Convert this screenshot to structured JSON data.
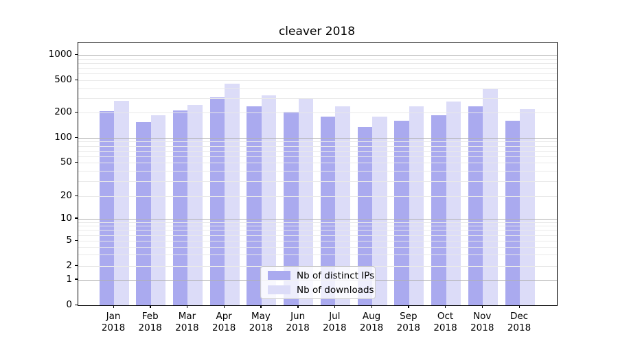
{
  "chart_data": {
    "type": "bar",
    "title": "cleaver 2018",
    "categories": [
      "Jan",
      "Feb",
      "Mar",
      "Apr",
      "May",
      "Jun",
      "Jul",
      "Aug",
      "Sep",
      "Oct",
      "Nov",
      "Dec"
    ],
    "year_label": "2018",
    "series": [
      {
        "name": "Nb of distinct IPs",
        "color": "#aaaaef",
        "values": [
          210,
          155,
          215,
          310,
          240,
          205,
          180,
          135,
          160,
          185,
          240,
          160
        ]
      },
      {
        "name": "Nb of downloads",
        "color": "#dcdcf8",
        "values": [
          280,
          185,
          250,
          450,
          325,
          295,
          240,
          180,
          240,
          275,
          385,
          220
        ]
      }
    ],
    "yscale": "symlog",
    "yticks": [
      0,
      1,
      2,
      5,
      10,
      20,
      50,
      100,
      200,
      500,
      1000
    ],
    "ylim": [
      0,
      1400
    ],
    "grid": true,
    "major_grid_color": "#b0b0b0",
    "minor_grid_color": "#e9e9e9",
    "legend_position": "lower center"
  }
}
